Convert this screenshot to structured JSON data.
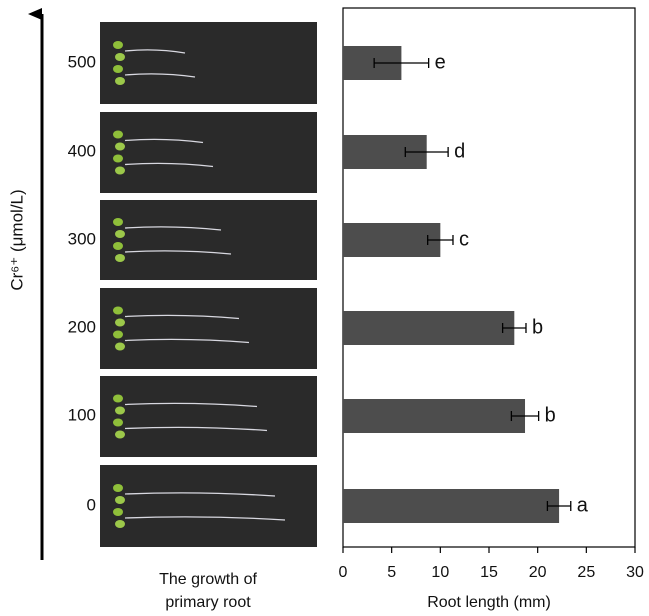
{
  "chart_data": {
    "type": "bar",
    "orientation": "horizontal",
    "y_label": "Cr⁶⁺ (μmol/L)",
    "x_label": "Root length (mm)",
    "photo_caption": [
      "The growth of",
      "primary root"
    ],
    "categories": [
      "500",
      "400",
      "300",
      "200",
      "100",
      "0"
    ],
    "values": [
      6.0,
      8.6,
      10.0,
      17.6,
      18.7,
      22.2
    ],
    "errors": [
      2.8,
      2.2,
      1.3,
      1.2,
      1.4,
      1.2
    ],
    "letters": [
      "e",
      "d",
      "c",
      "b",
      "b",
      "a"
    ],
    "color": "#4d4d4d",
    "xlim": [
      0,
      30
    ],
    "xticks": [
      0,
      5,
      10,
      15,
      20,
      25,
      30
    ]
  }
}
